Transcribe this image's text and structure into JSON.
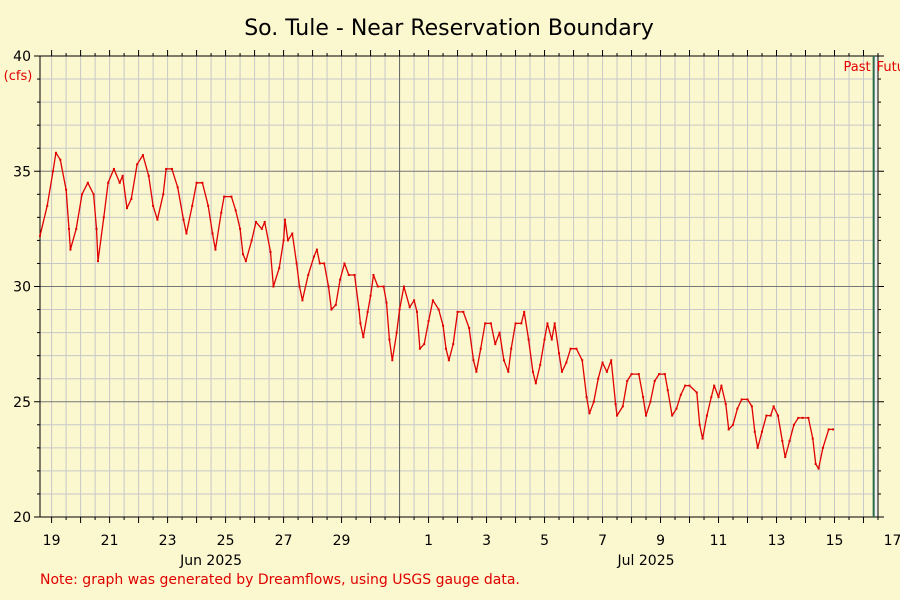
{
  "chart_data": {
    "type": "line",
    "title": "So. Tule - Near Reservation Boundary",
    "ylabel": "(cfs)",
    "ylim": [
      20,
      40
    ],
    "yticks": [
      20,
      25,
      30,
      35,
      40
    ],
    "xlim": [
      18.6,
      47.5
    ],
    "xaxis_day_ticks": [
      {
        "x": 19,
        "label": "19"
      },
      {
        "x": 21,
        "label": "21"
      },
      {
        "x": 23,
        "label": "23"
      },
      {
        "x": 25,
        "label": "25"
      },
      {
        "x": 27,
        "label": "27"
      },
      {
        "x": 29,
        "label": "29"
      },
      {
        "x": 32,
        "label": "1"
      },
      {
        "x": 34,
        "label": "3"
      },
      {
        "x": 36,
        "label": "5"
      },
      {
        "x": 38,
        "label": "7"
      },
      {
        "x": 40,
        "label": "9"
      },
      {
        "x": 42,
        "label": "11"
      },
      {
        "x": 44,
        "label": "13"
      },
      {
        "x": 46,
        "label": "15"
      },
      {
        "x": 48,
        "label": "17"
      }
    ],
    "month_labels": [
      {
        "x": 24.5,
        "label": "Jun 2025"
      },
      {
        "x": 39.5,
        "label": "Jul 2025"
      }
    ],
    "month_boundary_x": 31,
    "now_x": 47.35,
    "past_label": "Past",
    "future_label": "Future",
    "series": [
      {
        "color": "#e00000",
        "points": [
          [
            18.6,
            32.2
          ],
          [
            18.85,
            33.5
          ],
          [
            19.05,
            35.0
          ],
          [
            19.15,
            35.8
          ],
          [
            19.3,
            35.5
          ],
          [
            19.5,
            34.2
          ],
          [
            19.6,
            32.5
          ],
          [
            19.65,
            31.6
          ],
          [
            19.85,
            32.5
          ],
          [
            20.05,
            34.0
          ],
          [
            20.25,
            34.5
          ],
          [
            20.45,
            34.0
          ],
          [
            20.55,
            32.5
          ],
          [
            20.6,
            31.1
          ],
          [
            20.8,
            33.0
          ],
          [
            20.95,
            34.5
          ],
          [
            21.15,
            35.1
          ],
          [
            21.35,
            34.5
          ],
          [
            21.45,
            34.8
          ],
          [
            21.6,
            33.4
          ],
          [
            21.75,
            33.8
          ],
          [
            21.95,
            35.3
          ],
          [
            22.15,
            35.7
          ],
          [
            22.35,
            34.8
          ],
          [
            22.5,
            33.5
          ],
          [
            22.65,
            32.9
          ],
          [
            22.85,
            34.0
          ],
          [
            22.95,
            35.1
          ],
          [
            23.15,
            35.1
          ],
          [
            23.35,
            34.3
          ],
          [
            23.55,
            32.9
          ],
          [
            23.65,
            32.3
          ],
          [
            23.85,
            33.5
          ],
          [
            24.0,
            34.5
          ],
          [
            24.2,
            34.5
          ],
          [
            24.4,
            33.5
          ],
          [
            24.55,
            32.3
          ],
          [
            24.65,
            31.6
          ],
          [
            24.85,
            33.2
          ],
          [
            24.95,
            33.9
          ],
          [
            25.2,
            33.9
          ],
          [
            25.35,
            33.3
          ],
          [
            25.5,
            32.5
          ],
          [
            25.6,
            31.4
          ],
          [
            25.7,
            31.1
          ],
          [
            25.9,
            32.0
          ],
          [
            26.05,
            32.8
          ],
          [
            26.25,
            32.5
          ],
          [
            26.35,
            32.8
          ],
          [
            26.55,
            31.5
          ],
          [
            26.65,
            30.0
          ],
          [
            26.85,
            30.8
          ],
          [
            27.0,
            32.0
          ],
          [
            27.05,
            32.9
          ],
          [
            27.15,
            32.0
          ],
          [
            27.3,
            32.3
          ],
          [
            27.45,
            31.0
          ],
          [
            27.55,
            30.0
          ],
          [
            27.65,
            29.4
          ],
          [
            27.85,
            30.5
          ],
          [
            28.05,
            31.3
          ],
          [
            28.15,
            31.6
          ],
          [
            28.25,
            31.0
          ],
          [
            28.4,
            31.0
          ],
          [
            28.55,
            30.0
          ],
          [
            28.65,
            29.0
          ],
          [
            28.8,
            29.2
          ],
          [
            28.95,
            30.3
          ],
          [
            29.1,
            31.0
          ],
          [
            29.25,
            30.5
          ],
          [
            29.45,
            30.5
          ],
          [
            29.6,
            29.0
          ],
          [
            29.65,
            28.4
          ],
          [
            29.75,
            27.8
          ],
          [
            29.9,
            28.9
          ],
          [
            30.0,
            29.6
          ],
          [
            30.1,
            30.5
          ],
          [
            30.25,
            30.0
          ],
          [
            30.45,
            30.0
          ],
          [
            30.55,
            29.3
          ],
          [
            30.65,
            27.7
          ],
          [
            30.75,
            26.8
          ],
          [
            30.9,
            28.0
          ],
          [
            31.0,
            29.0
          ],
          [
            31.15,
            30.0
          ],
          [
            31.35,
            29.1
          ],
          [
            31.5,
            29.4
          ],
          [
            31.6,
            28.9
          ],
          [
            31.7,
            27.3
          ],
          [
            31.85,
            27.5
          ],
          [
            32.0,
            28.5
          ],
          [
            32.15,
            29.4
          ],
          [
            32.35,
            29.0
          ],
          [
            32.5,
            28.3
          ],
          [
            32.6,
            27.3
          ],
          [
            32.7,
            26.8
          ],
          [
            32.85,
            27.5
          ],
          [
            33.0,
            28.9
          ],
          [
            33.2,
            28.9
          ],
          [
            33.4,
            28.2
          ],
          [
            33.55,
            26.8
          ],
          [
            33.65,
            26.3
          ],
          [
            33.8,
            27.3
          ],
          [
            33.95,
            28.4
          ],
          [
            34.15,
            28.4
          ],
          [
            34.3,
            27.5
          ],
          [
            34.45,
            28.0
          ],
          [
            34.6,
            26.8
          ],
          [
            34.75,
            26.3
          ],
          [
            34.85,
            27.3
          ],
          [
            35.0,
            28.4
          ],
          [
            35.2,
            28.4
          ],
          [
            35.3,
            28.9
          ],
          [
            35.45,
            27.7
          ],
          [
            35.6,
            26.3
          ],
          [
            35.7,
            25.8
          ],
          [
            35.85,
            26.6
          ],
          [
            36.0,
            27.7
          ],
          [
            36.1,
            28.4
          ],
          [
            36.25,
            27.7
          ],
          [
            36.35,
            28.4
          ],
          [
            36.5,
            27.1
          ],
          [
            36.6,
            26.3
          ],
          [
            36.75,
            26.7
          ],
          [
            36.9,
            27.3
          ],
          [
            37.1,
            27.3
          ],
          [
            37.3,
            26.8
          ],
          [
            37.45,
            25.2
          ],
          [
            37.55,
            24.5
          ],
          [
            37.7,
            25.0
          ],
          [
            37.85,
            26.0
          ],
          [
            38.0,
            26.7
          ],
          [
            38.15,
            26.3
          ],
          [
            38.3,
            26.8
          ],
          [
            38.45,
            24.9
          ],
          [
            38.5,
            24.4
          ],
          [
            38.7,
            24.8
          ],
          [
            38.85,
            25.9
          ],
          [
            39.0,
            26.2
          ],
          [
            39.25,
            26.2
          ],
          [
            39.4,
            25.2
          ],
          [
            39.5,
            24.4
          ],
          [
            39.65,
            25.0
          ],
          [
            39.8,
            25.9
          ],
          [
            39.95,
            26.2
          ],
          [
            40.15,
            26.2
          ],
          [
            40.25,
            25.5
          ],
          [
            40.4,
            24.4
          ],
          [
            40.55,
            24.7
          ],
          [
            40.7,
            25.3
          ],
          [
            40.85,
            25.7
          ],
          [
            41.0,
            25.7
          ],
          [
            41.25,
            25.4
          ],
          [
            41.35,
            24.0
          ],
          [
            41.45,
            23.4
          ],
          [
            41.6,
            24.4
          ],
          [
            41.75,
            25.2
          ],
          [
            41.85,
            25.7
          ],
          [
            42.0,
            25.2
          ],
          [
            42.1,
            25.7
          ],
          [
            42.25,
            24.9
          ],
          [
            42.35,
            23.8
          ],
          [
            42.5,
            24.0
          ],
          [
            42.65,
            24.7
          ],
          [
            42.8,
            25.1
          ],
          [
            43.0,
            25.1
          ],
          [
            43.15,
            24.8
          ],
          [
            43.25,
            23.7
          ],
          [
            43.35,
            23.0
          ],
          [
            43.5,
            23.7
          ],
          [
            43.65,
            24.4
          ],
          [
            43.8,
            24.4
          ],
          [
            43.9,
            24.8
          ],
          [
            44.05,
            24.4
          ],
          [
            44.2,
            23.3
          ],
          [
            44.3,
            22.6
          ],
          [
            44.45,
            23.3
          ],
          [
            44.6,
            24.0
          ],
          [
            44.75,
            24.3
          ],
          [
            44.9,
            24.3
          ],
          [
            45.1,
            24.3
          ],
          [
            45.25,
            23.4
          ],
          [
            45.35,
            22.3
          ],
          [
            45.45,
            22.1
          ],
          [
            45.6,
            23.0
          ],
          [
            45.8,
            23.8
          ],
          [
            45.95,
            23.8
          ]
        ]
      }
    ],
    "grid": true
  },
  "note": "Note: graph was generated by Dreamflows, using USGS gauge data."
}
